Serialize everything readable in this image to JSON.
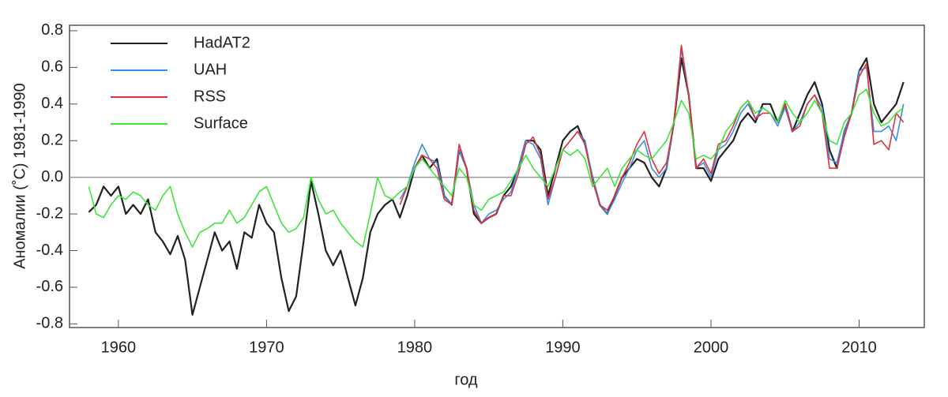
{
  "chart_data": {
    "type": "line",
    "x_label": "год",
    "y_label": "Аномалии (˚C) 1981-1990",
    "xlim": [
      1956.7,
      2014.4
    ],
    "ylim": [
      -0.82,
      0.83
    ],
    "xticks": [
      1960,
      1970,
      1980,
      1990,
      2000,
      2010
    ],
    "yticks": [
      0.8,
      0.6,
      0.4,
      0.2,
      {
        "value": 0,
        "label": "0.0"
      },
      -0.2,
      -0.4,
      -0.6,
      -0.8
    ],
    "x": [
      1958,
      1958.5,
      1959,
      1959.5,
      1960,
      1960.5,
      1961,
      1961.5,
      1962,
      1962.5,
      1963,
      1963.5,
      1964,
      1964.5,
      1965,
      1965.5,
      1966,
      1966.5,
      1967,
      1967.5,
      1968,
      1968.5,
      1969,
      1969.5,
      1970,
      1970.5,
      1971,
      1971.5,
      1972,
      1972.5,
      1973,
      1973.5,
      1974,
      1974.5,
      1975,
      1975.5,
      1976,
      1976.5,
      1977,
      1977.5,
      1978,
      1978.5,
      1979,
      1979.5,
      1980,
      1980.5,
      1981,
      1981.5,
      1982,
      1982.5,
      1983,
      1983.5,
      1984,
      1984.5,
      1985,
      1985.5,
      1986,
      1986.5,
      1987,
      1987.5,
      1988,
      1988.5,
      1989,
      1989.5,
      1990,
      1990.5,
      1991,
      1991.5,
      1992,
      1992.5,
      1993,
      1993.5,
      1994,
      1994.5,
      1995,
      1995.5,
      1996,
      1996.5,
      1997,
      1997.5,
      1998,
      1998.5,
      1999,
      1999.5,
      2000,
      2000.5,
      2001,
      2001.5,
      2002,
      2002.5,
      2003,
      2003.5,
      2004,
      2004.5,
      2005,
      2005.5,
      2006,
      2006.5,
      2007,
      2007.5,
      2008,
      2008.5,
      2009,
      2009.5,
      2010,
      2010.5,
      2011,
      2011.5,
      2012,
      2012.5,
      2013
    ],
    "series": [
      {
        "name": "HadAT2",
        "color": "#222222",
        "values": [
          -0.19,
          -0.15,
          -0.05,
          -0.1,
          -0.05,
          -0.2,
          -0.15,
          -0.2,
          -0.12,
          -0.3,
          -0.35,
          -0.42,
          -0.32,
          -0.45,
          -0.75,
          -0.6,
          -0.45,
          -0.3,
          -0.4,
          -0.35,
          -0.5,
          -0.3,
          -0.33,
          -0.15,
          -0.25,
          -0.3,
          -0.55,
          -0.73,
          -0.65,
          -0.35,
          -0.02,
          -0.2,
          -0.4,
          -0.48,
          -0.4,
          -0.55,
          -0.7,
          -0.55,
          -0.3,
          -0.2,
          -0.15,
          -0.12,
          -0.22,
          -0.1,
          0.05,
          0.12,
          0.05,
          0.1,
          -0.1,
          -0.15,
          0.15,
          0.05,
          -0.2,
          -0.25,
          -0.22,
          -0.2,
          -0.1,
          -0.05,
          0.05,
          0.2,
          0.2,
          0.15,
          -0.1,
          0.05,
          0.2,
          0.25,
          0.28,
          0.18,
          0.0,
          -0.15,
          -0.2,
          -0.1,
          0.0,
          0.05,
          0.1,
          0.08,
          0.0,
          -0.05,
          0.05,
          0.3,
          0.65,
          0.45,
          0.05,
          0.05,
          -0.02,
          0.1,
          0.15,
          0.2,
          0.3,
          0.35,
          0.3,
          0.4,
          0.4,
          0.3,
          0.4,
          0.25,
          0.35,
          0.45,
          0.52,
          0.4,
          0.15,
          0.05,
          0.25,
          0.35,
          0.58,
          0.65,
          0.4,
          0.3,
          0.35,
          0.4,
          0.52
        ]
      },
      {
        "name": "UAH",
        "color": "#3a8ee6",
        "values": [
          null,
          null,
          null,
          null,
          null,
          null,
          null,
          null,
          null,
          null,
          null,
          null,
          null,
          null,
          null,
          null,
          null,
          null,
          null,
          null,
          null,
          null,
          null,
          null,
          null,
          null,
          null,
          null,
          null,
          null,
          null,
          null,
          null,
          null,
          null,
          null,
          null,
          null,
          null,
          null,
          null,
          null,
          -0.12,
          -0.05,
          0.08,
          0.18,
          0.1,
          0.08,
          -0.1,
          -0.15,
          0.15,
          0.05,
          -0.15,
          -0.25,
          -0.2,
          -0.18,
          -0.12,
          -0.08,
          0.05,
          0.2,
          0.18,
          0.1,
          -0.15,
          0.0,
          0.15,
          0.2,
          0.25,
          0.2,
          0.0,
          -0.15,
          -0.2,
          -0.12,
          -0.03,
          0.05,
          0.15,
          0.2,
          0.05,
          0.0,
          0.05,
          0.3,
          0.7,
          0.45,
          0.05,
          0.08,
          0.0,
          0.15,
          0.18,
          0.25,
          0.35,
          0.4,
          0.32,
          0.38,
          0.35,
          0.28,
          0.38,
          0.25,
          0.3,
          0.4,
          0.45,
          0.38,
          0.1,
          0.08,
          0.25,
          0.35,
          0.58,
          0.6,
          0.25,
          0.25,
          0.28,
          0.2,
          0.4
        ]
      },
      {
        "name": "RSS",
        "color": "#e0323c",
        "values": [
          null,
          null,
          null,
          null,
          null,
          null,
          null,
          null,
          null,
          null,
          null,
          null,
          null,
          null,
          null,
          null,
          null,
          null,
          null,
          null,
          null,
          null,
          null,
          null,
          null,
          null,
          null,
          null,
          null,
          null,
          null,
          null,
          null,
          null,
          null,
          null,
          null,
          null,
          null,
          null,
          null,
          null,
          -0.15,
          -0.05,
          0.05,
          0.12,
          0.1,
          0.05,
          -0.12,
          -0.15,
          0.18,
          0.05,
          -0.18,
          -0.25,
          -0.22,
          -0.2,
          -0.1,
          -0.1,
          0.02,
          0.18,
          0.22,
          0.12,
          -0.12,
          0.0,
          0.15,
          0.2,
          0.25,
          0.18,
          -0.02,
          -0.15,
          -0.18,
          -0.1,
          0.0,
          0.08,
          0.18,
          0.25,
          0.1,
          0.02,
          0.08,
          0.3,
          0.72,
          0.45,
          0.05,
          0.1,
          0.02,
          0.18,
          0.2,
          0.28,
          0.38,
          0.42,
          0.32,
          0.35,
          0.35,
          0.3,
          0.4,
          0.25,
          0.28,
          0.4,
          0.45,
          0.35,
          0.05,
          0.05,
          0.22,
          0.35,
          0.55,
          0.62,
          0.18,
          0.2,
          0.15,
          0.35,
          0.3
        ]
      },
      {
        "name": "Surface",
        "color": "#3ee63a",
        "values": [
          -0.05,
          -0.2,
          -0.22,
          -0.15,
          -0.1,
          -0.12,
          -0.08,
          -0.1,
          -0.15,
          -0.18,
          -0.1,
          -0.05,
          -0.2,
          -0.3,
          -0.38,
          -0.3,
          -0.28,
          -0.25,
          -0.25,
          -0.18,
          -0.25,
          -0.22,
          -0.15,
          -0.08,
          -0.05,
          -0.15,
          -0.25,
          -0.3,
          -0.28,
          -0.22,
          0.0,
          -0.12,
          -0.2,
          -0.18,
          -0.25,
          -0.3,
          -0.35,
          -0.38,
          -0.2,
          0.0,
          -0.1,
          -0.12,
          -0.08,
          -0.05,
          0.05,
          0.1,
          0.05,
          0.0,
          -0.05,
          -0.1,
          0.05,
          0.0,
          -0.15,
          -0.18,
          -0.12,
          -0.1,
          -0.08,
          -0.02,
          0.05,
          0.12,
          0.05,
          0.0,
          -0.05,
          0.05,
          0.15,
          0.12,
          0.15,
          0.1,
          -0.05,
          0.0,
          0.05,
          -0.05,
          0.05,
          0.1,
          0.15,
          0.12,
          0.1,
          0.15,
          0.2,
          0.3,
          0.42,
          0.35,
          0.1,
          0.12,
          0.1,
          0.15,
          0.25,
          0.3,
          0.38,
          0.42,
          0.35,
          0.38,
          0.35,
          0.3,
          0.42,
          0.35,
          0.3,
          0.35,
          0.42,
          0.35,
          0.2,
          0.18,
          0.3,
          0.35,
          0.45,
          0.48,
          0.35,
          0.28,
          0.3,
          0.35,
          0.38
        ]
      }
    ]
  }
}
